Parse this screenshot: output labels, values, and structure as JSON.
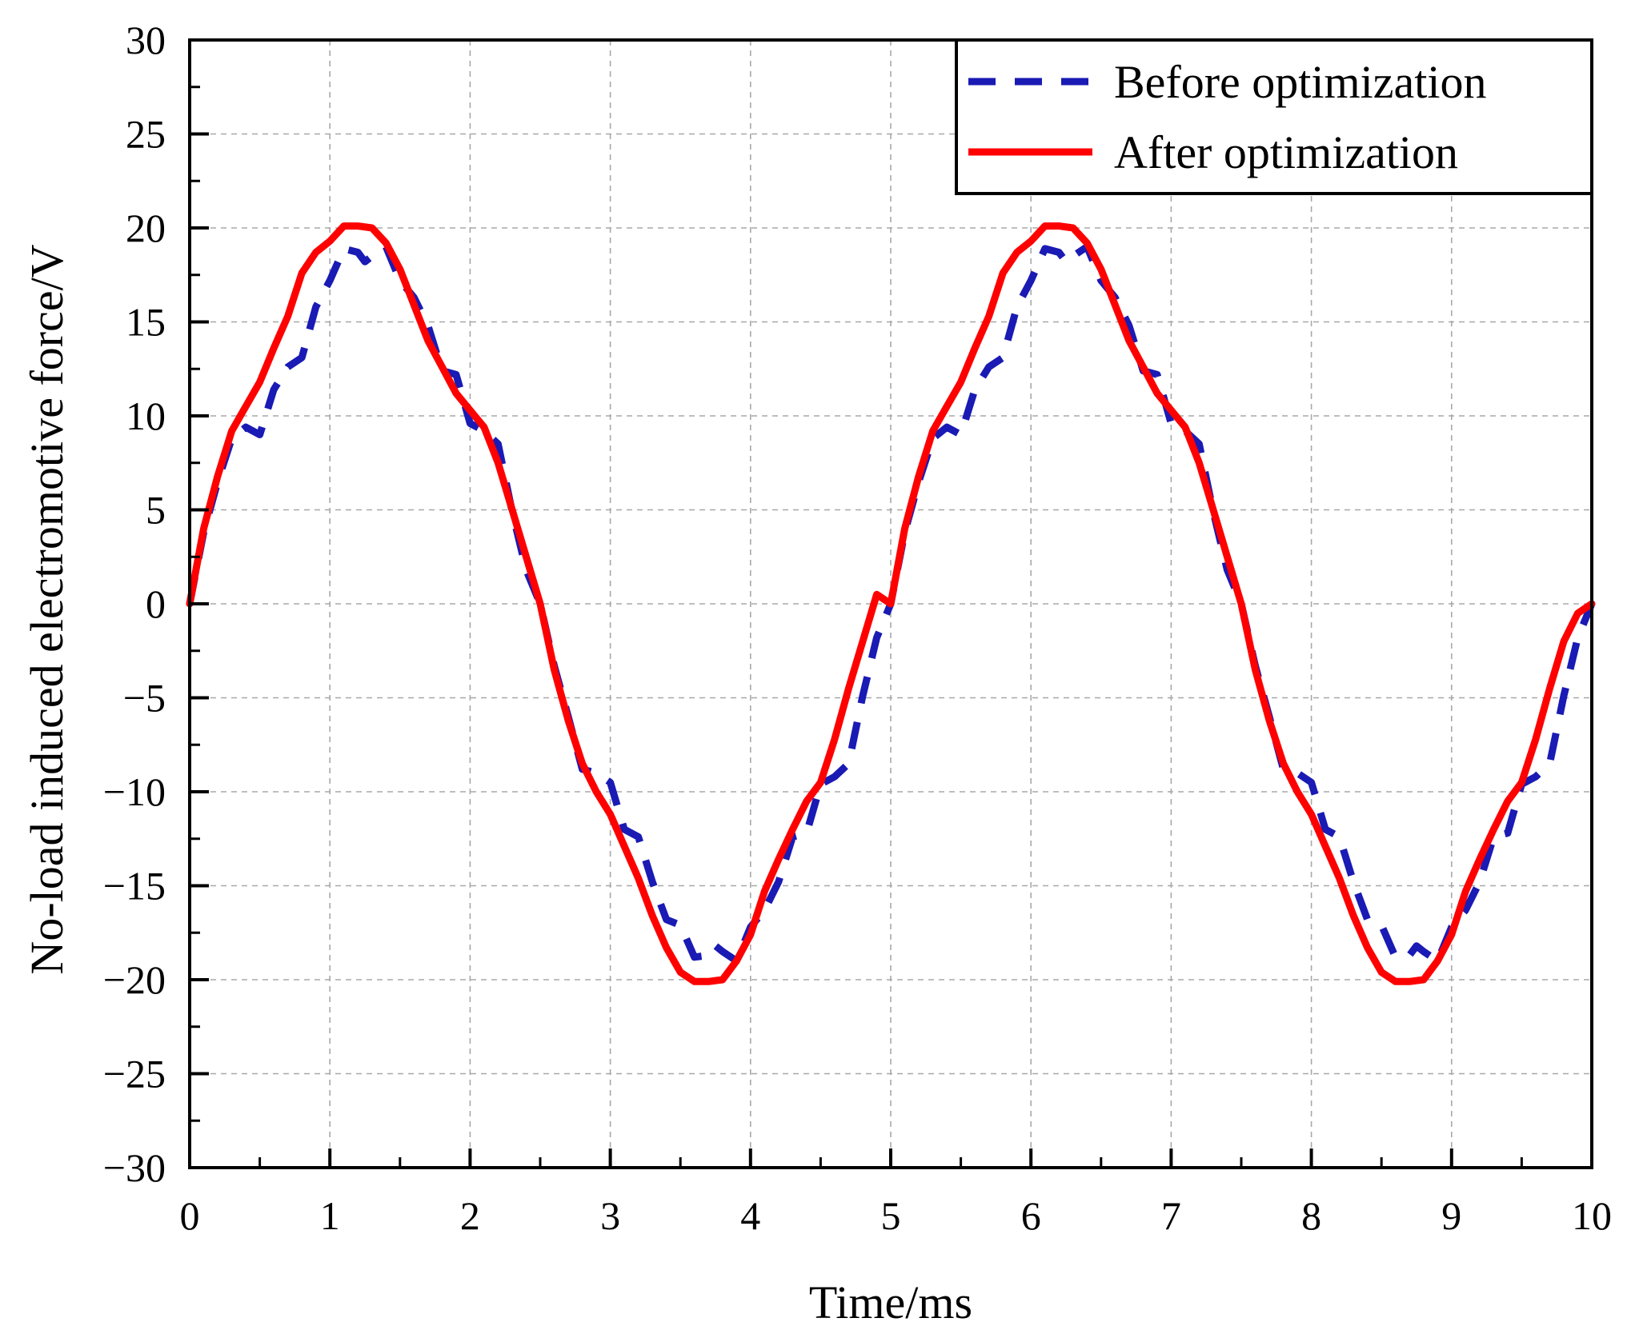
{
  "chart_data": {
    "type": "line",
    "title": "",
    "xlabel": "Time/ms",
    "ylabel": "No-load induced electromotive force/V",
    "xlim": [
      0,
      10
    ],
    "ylim": [
      -30,
      30
    ],
    "x_ticks": [
      0,
      1,
      2,
      3,
      4,
      5,
      6,
      7,
      8,
      9,
      10
    ],
    "y_ticks": [
      -30,
      -25,
      -20,
      -15,
      -10,
      -5,
      0,
      5,
      10,
      15,
      20,
      25,
      30
    ],
    "x_tick_labels": [
      "0",
      "1",
      "2",
      "3",
      "4",
      "5",
      "6",
      "7",
      "8",
      "9",
      "10"
    ],
    "y_tick_labels": [
      "−30",
      "−25",
      "−20",
      "−15",
      "−10",
      "−5",
      "0",
      "5",
      "10",
      "15",
      "20",
      "25",
      "30"
    ],
    "grid": true,
    "legend_position": "top-right",
    "legend": [
      {
        "label": "Before optimization",
        "color": "#1a1ab4",
        "style": "dashed"
      },
      {
        "label": "After optimization",
        "color": "#ff0000",
        "style": "solid"
      }
    ],
    "series": [
      {
        "name": "Before optimization",
        "color": "#1a1ab4",
        "style": "dashed",
        "period_ms": 5,
        "x": [
          0,
          0.1,
          0.2,
          0.3,
          0.4,
          0.5,
          0.6,
          0.7,
          0.8,
          0.9,
          1.0,
          1.1,
          1.2,
          1.25,
          1.3,
          1.4,
          1.5,
          1.6,
          1.7,
          1.8,
          1.9,
          2.0,
          2.1,
          2.2,
          2.3,
          2.4,
          2.5,
          2.6,
          2.7,
          2.8,
          2.9,
          3.0,
          3.1,
          3.2,
          3.3,
          3.4,
          3.5,
          3.6,
          3.7,
          3.75,
          3.8,
          3.9,
          4.0,
          4.1,
          4.2,
          4.3,
          4.4,
          4.5,
          4.6,
          4.7,
          4.8,
          4.9,
          5.0,
          5.1,
          5.2,
          5.3,
          5.4,
          5.5,
          5.6,
          5.7,
          5.8,
          5.9,
          6.0,
          6.1,
          6.2,
          6.25,
          6.3,
          6.4,
          6.5,
          6.6,
          6.7,
          6.8,
          6.9,
          7.0,
          7.1,
          7.2,
          7.3,
          7.4,
          7.5,
          7.6,
          7.7,
          7.8,
          7.9,
          8.0,
          8.1,
          8.2,
          8.3,
          8.4,
          8.5,
          8.6,
          8.7,
          8.75,
          8.8,
          8.9,
          9.0,
          9.1,
          9.2,
          9.3,
          9.4,
          9.5,
          9.6,
          9.7,
          9.8,
          9.9,
          10.0
        ],
        "values": [
          0,
          3.8,
          6.5,
          8.8,
          9.4,
          9.0,
          11.4,
          12.6,
          13.1,
          15.8,
          17.2,
          18.9,
          18.7,
          18.2,
          18.5,
          19.0,
          17.2,
          16.3,
          14.8,
          12.4,
          12.2,
          9.6,
          9.2,
          8.5,
          4.9,
          1.8,
          0,
          -3.3,
          -6.0,
          -8.8,
          -9.0,
          -9.5,
          -12.0,
          -12.4,
          -14.8,
          -16.8,
          -17.1,
          -18.8,
          -18.7,
          -18.2,
          -18.5,
          -19.0,
          -17.2,
          -16.3,
          -14.8,
          -12.4,
          -12.2,
          -9.6,
          -9.2,
          -8.5,
          -4.9,
          -1.8,
          0,
          3.8,
          6.5,
          8.8,
          9.4,
          9.0,
          11.4,
          12.6,
          13.1,
          15.8,
          17.2,
          18.9,
          18.7,
          18.2,
          18.5,
          19.0,
          17.2,
          16.3,
          14.8,
          12.4,
          12.2,
          9.6,
          9.2,
          8.5,
          4.9,
          1.8,
          0,
          -3.3,
          -6.0,
          -8.8,
          -9.0,
          -9.5,
          -12.0,
          -12.4,
          -14.8,
          -16.8,
          -17.1,
          -18.8,
          -18.7,
          -18.2,
          -18.5,
          -19.0,
          -17.2,
          -16.3,
          -14.8,
          -12.4,
          -12.2,
          -9.6,
          -9.2,
          -8.5,
          -4.9,
          -1.8,
          0
        ]
      },
      {
        "name": "After optimization",
        "color": "#ff0000",
        "style": "solid",
        "period_ms": 5,
        "x": [
          0,
          0.1,
          0.2,
          0.3,
          0.4,
          0.5,
          0.6,
          0.7,
          0.8,
          0.9,
          1.0,
          1.1,
          1.2,
          1.3,
          1.4,
          1.5,
          1.6,
          1.7,
          1.8,
          1.9,
          2.0,
          2.1,
          2.2,
          2.3,
          2.4,
          2.5,
          2.6,
          2.7,
          2.8,
          2.9,
          3.0,
          3.1,
          3.2,
          3.3,
          3.4,
          3.5,
          3.6,
          3.7,
          3.8,
          3.9,
          4.0,
          4.1,
          4.2,
          4.3,
          4.4,
          4.5,
          4.6,
          4.7,
          4.8,
          4.9,
          5.0,
          5.1,
          5.2,
          5.3,
          5.4,
          5.5,
          5.6,
          5.7,
          5.8,
          5.9,
          6.0,
          6.1,
          6.2,
          6.3,
          6.4,
          6.5,
          6.6,
          6.7,
          6.8,
          6.9,
          7.0,
          7.1,
          7.2,
          7.3,
          7.4,
          7.5,
          7.6,
          7.7,
          7.8,
          7.9,
          8.0,
          8.1,
          8.2,
          8.3,
          8.4,
          8.5,
          8.6,
          8.7,
          8.8,
          8.9,
          9.0,
          9.1,
          9.2,
          9.3,
          9.4,
          9.5,
          9.6,
          9.7,
          9.8,
          9.9,
          10.0
        ],
        "values": [
          0,
          4.0,
          6.8,
          9.2,
          10.5,
          11.8,
          13.6,
          15.3,
          17.6,
          18.7,
          19.3,
          20.1,
          20.1,
          20.0,
          19.2,
          17.8,
          15.9,
          14.0,
          12.6,
          11.2,
          10.3,
          9.4,
          7.5,
          5.0,
          2.5,
          0,
          -3.5,
          -6.2,
          -8.5,
          -10.0,
          -11.2,
          -12.9,
          -14.6,
          -16.6,
          -18.3,
          -19.6,
          -20.1,
          -20.1,
          -20.0,
          -19.0,
          -17.6,
          -15.3,
          -13.6,
          -12.0,
          -10.5,
          -9.5,
          -7.2,
          -4.5,
          -2.0,
          0.5,
          0,
          4.0,
          6.8,
          9.2,
          10.5,
          11.8,
          13.6,
          15.3,
          17.6,
          18.7,
          19.3,
          20.1,
          20.1,
          20.0,
          19.2,
          17.8,
          15.9,
          14.0,
          12.6,
          11.2,
          10.3,
          9.4,
          7.5,
          5.0,
          2.5,
          0,
          -3.5,
          -6.2,
          -8.5,
          -10.0,
          -11.2,
          -12.9,
          -14.6,
          -16.6,
          -18.3,
          -19.6,
          -20.1,
          -20.1,
          -20.0,
          -19.0,
          -17.6,
          -15.3,
          -13.6,
          -12.0,
          -10.5,
          -9.5,
          -7.2,
          -4.5,
          -2.0,
          -0.5,
          0
        ]
      }
    ]
  }
}
